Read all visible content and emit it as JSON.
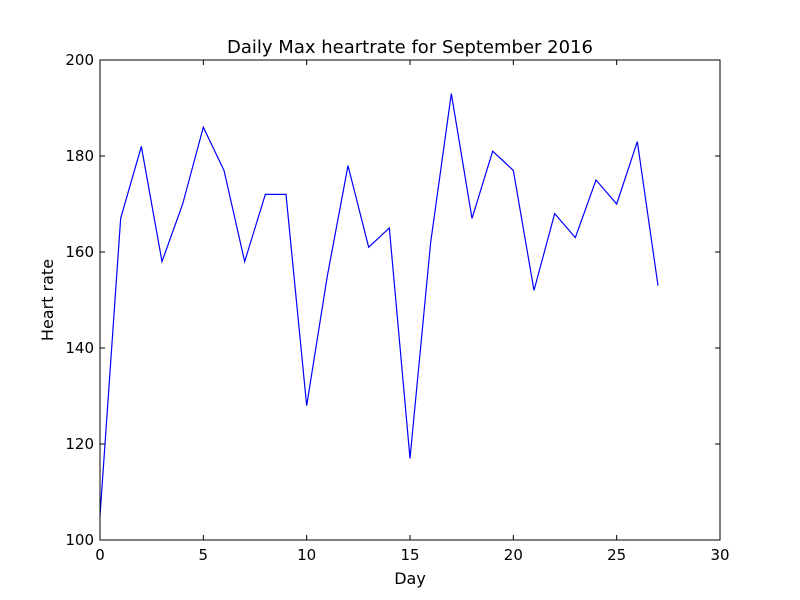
{
  "chart_data": {
    "type": "line",
    "title": "Daily Max heartrate for September 2016",
    "xlabel": "Day",
    "ylabel": "Heart rate",
    "xlim": [
      0,
      30
    ],
    "ylim": [
      100,
      200
    ],
    "xticks": [
      0,
      5,
      10,
      15,
      20,
      25,
      30
    ],
    "yticks": [
      100,
      120,
      140,
      160,
      180,
      200
    ],
    "grid": false,
    "line_color": "#0000ff",
    "x": [
      0,
      1,
      2,
      3,
      4,
      5,
      6,
      7,
      8,
      9,
      10,
      11,
      12,
      13,
      14,
      15,
      16,
      17,
      18,
      19,
      20,
      21,
      22,
      23,
      24,
      25,
      26,
      27
    ],
    "series": [
      {
        "values": [
          105,
          167,
          182,
          158,
          170,
          186,
          177,
          158,
          172,
          172,
          128,
          155,
          178,
          161,
          165,
          117,
          162,
          193,
          167,
          181,
          177,
          152,
          168,
          163,
          175,
          170,
          183,
          153
        ]
      }
    ]
  }
}
